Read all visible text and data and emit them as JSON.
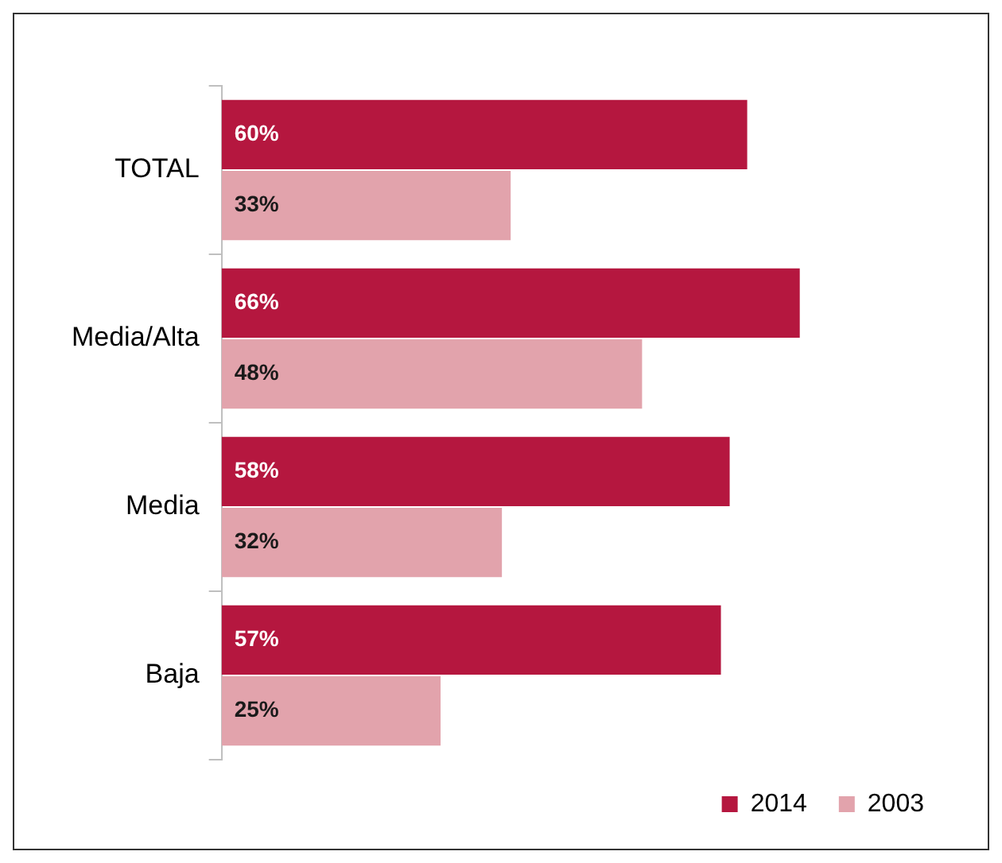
{
  "chart_data": {
    "type": "bar",
    "orientation": "horizontal",
    "categories": [
      "TOTAL",
      "Media/Alta",
      "Media",
      "Baja"
    ],
    "legend": "bottom right",
    "series": [
      {
        "name": "2014",
        "color": "#b5173f",
        "values": [
          60,
          66,
          58,
          57
        ],
        "value_labels": [
          "60%",
          "66%",
          "58%",
          "57%"
        ]
      },
      {
        "name": "2003",
        "color": "#e2a3ac",
        "values": [
          33,
          48,
          32,
          25
        ],
        "value_labels": [
          "33%",
          "48%",
          "32%",
          "25%"
        ]
      }
    ]
  }
}
